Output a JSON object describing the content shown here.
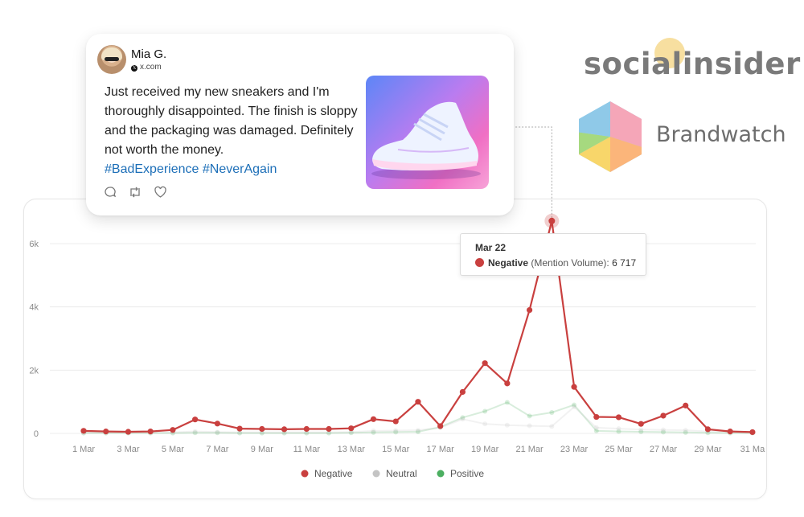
{
  "tweet": {
    "user_name": "Mia G.",
    "user_handle": "x.com",
    "text": "Just received my new sneakers and I'm thoroughly disappointed. The finish is sloppy and the packaging was damaged. Definitely not worth the money.",
    "hashtags": "#BadExperience #NeverAgain",
    "icons": [
      "reply-icon",
      "retweet-icon",
      "like-icon"
    ]
  },
  "logos": {
    "socialinsider": "socialinsider",
    "brandwatch": "Brandwatch"
  },
  "tooltip": {
    "date": "Mar 22",
    "series": "Negative",
    "metric": "(Mention Volume):",
    "value": "6 717"
  },
  "colors": {
    "negative": "#c9403f",
    "neutral": "#c4c4c4",
    "positive": "#4caf61"
  },
  "chart_data": {
    "type": "line",
    "title": "",
    "xlabel": "",
    "ylabel": "",
    "x": [
      "1 Mar",
      "2 Mar",
      "3 Mar",
      "4 Mar",
      "5 Mar",
      "6 Mar",
      "7 Mar",
      "8 Mar",
      "9 Mar",
      "10 Mar",
      "11 Mar",
      "12 Mar",
      "13 Mar",
      "14 Mar",
      "15 Mar",
      "16 Mar",
      "17 Mar",
      "18 Mar",
      "19 Mar",
      "20 Mar",
      "21 Mar",
      "22 Mar",
      "23 Mar",
      "24 Mar",
      "25 Mar",
      "26 Mar",
      "27 Mar",
      "28 Mar",
      "29 Mar",
      "30 Mar",
      "31 Mar"
    ],
    "x_tick_labels": [
      "1 Mar",
      "3 Mar",
      "5 Mar",
      "7 Mar",
      "9 Mar",
      "11 Mar",
      "13 Mar",
      "15 Mar",
      "17 Mar",
      "19 Mar",
      "21 Mar",
      "23 Mar",
      "25 Mar",
      "27 Mar",
      "29 Mar",
      "31 Ma"
    ],
    "y_ticks": [
      0,
      2000,
      4000,
      6000
    ],
    "y_tick_labels": [
      "0",
      "2k",
      "4k",
      "6k"
    ],
    "ylim": [
      0,
      6000
    ],
    "grid": true,
    "legend_position": "bottom-center",
    "series": [
      {
        "name": "Negative",
        "color": "#c9403f",
        "values": [
          80,
          60,
          50,
          60,
          110,
          440,
          310,
          150,
          140,
          130,
          140,
          140,
          160,
          450,
          380,
          1000,
          230,
          1310,
          2220,
          1580,
          3900,
          6717,
          1470,
          520,
          510,
          300,
          560,
          880,
          130,
          60,
          40
        ]
      },
      {
        "name": "Neutral",
        "color": "#c4c4c4",
        "values": [
          20,
          20,
          20,
          20,
          30,
          60,
          40,
          30,
          30,
          30,
          30,
          30,
          40,
          80,
          90,
          100,
          180,
          450,
          300,
          260,
          240,
          220,
          840,
          180,
          150,
          120,
          110,
          100,
          60,
          30,
          20
        ]
      },
      {
        "name": "Positive",
        "color": "#4caf61",
        "values": [
          10,
          10,
          10,
          10,
          10,
          20,
          20,
          10,
          10,
          10,
          10,
          10,
          20,
          30,
          40,
          50,
          200,
          500,
          700,
          980,
          550,
          660,
          900,
          80,
          60,
          50,
          40,
          30,
          20,
          10,
          10
        ]
      }
    ]
  }
}
